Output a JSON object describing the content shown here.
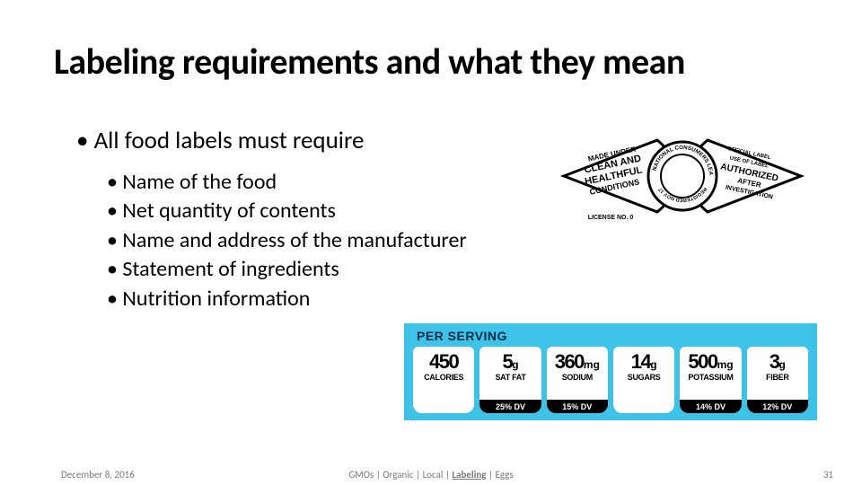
{
  "title": "Labeling requirements and what they mean",
  "main_bullet": "All food labels must require",
  "sub_bullets": [
    "Name of the food",
    "Net quantity of contents",
    "Name and address of the manufacturer",
    "Statement of ingredients",
    "Nutrition information"
  ],
  "footer": {
    "date": "December 8, 2016",
    "center_parts": [
      "GMOs",
      "Organic",
      "Local",
      "Labeling",
      "Eggs"
    ],
    "center_emph_index": 3,
    "page": "31"
  },
  "seal": {
    "left_lines": [
      "MADE UNDER",
      "CLEAN AND",
      "HEALTHFUL",
      "CONDITIONS"
    ],
    "left_sub": "LICENSE NO. 0",
    "center_ring_outer": "NATIONAL CONSUMERS LEAGUE",
    "center_ring_inner": "REGISTERED NOV 17",
    "right_lines": [
      "OFFICIAL LABEL",
      "USE OF LABEL",
      "AUTHORIZED",
      "AFTER",
      "INVESTIGATION"
    ],
    "stroke": "#000000",
    "fill": "#ffffff"
  },
  "nutrition": {
    "header": "PER SERVING",
    "bg_color": "#3ec2e8",
    "cell_bg": "#ffffff",
    "footer_bg": "#000000",
    "cells": [
      {
        "value": "450",
        "unit": "",
        "label": "CALORIES",
        "dv": ""
      },
      {
        "value": "5",
        "unit": "g",
        "label": "SAT FAT",
        "dv": "25% DV"
      },
      {
        "value": "360",
        "unit": "mg",
        "label": "SODIUM",
        "dv": "15% DV"
      },
      {
        "value": "14",
        "unit": "g",
        "label": "SUGARS",
        "dv": ""
      },
      {
        "value": "500",
        "unit": "mg",
        "label": "POTASSIUM",
        "dv": "14% DV"
      },
      {
        "value": "3",
        "unit": "g",
        "label": "FIBER",
        "dv": "12% DV"
      }
    ]
  }
}
